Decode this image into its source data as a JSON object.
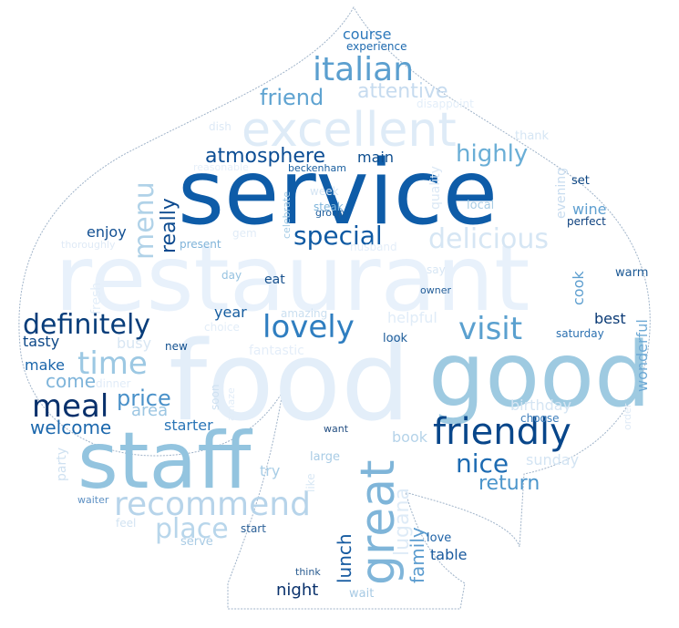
{
  "shape": "spade",
  "colors": {
    "background": "#ffffff",
    "outline": "#9fb3c9",
    "palette": [
      "#08306b",
      "#08519c",
      "#2171b5",
      "#4292c6",
      "#6baed6",
      "#9ecae1",
      "#c6dbef",
      "#deebf7"
    ]
  },
  "words": [
    {
      "text": "restaurant",
      "color": "#e8f1fb"
    },
    {
      "text": "food",
      "color": "#e3eef9"
    },
    {
      "text": "service",
      "color": "#0e5ca8"
    },
    {
      "text": "good",
      "color": "#9ecae1"
    },
    {
      "text": "staff",
      "color": "#93c4df"
    },
    {
      "text": "excellent",
      "color": "#deebf7"
    },
    {
      "text": "great",
      "color": "#7fb5d9"
    },
    {
      "text": "friendly",
      "color": "#08468a"
    },
    {
      "text": "recommend",
      "color": "#b7d4ea"
    },
    {
      "text": "italian",
      "color": "#5b9fcf"
    },
    {
      "text": "lovely",
      "color": "#2f7ec0"
    },
    {
      "text": "definitely",
      "color": "#083d7a"
    },
    {
      "text": "visit",
      "color": "#5aa0cf"
    },
    {
      "text": "meal",
      "color": "#08306b"
    },
    {
      "text": "time",
      "color": "#9cc8e3"
    },
    {
      "text": "place",
      "color": "#b8d6eb"
    },
    {
      "text": "delicious",
      "color": "#d6e6f4"
    },
    {
      "text": "menu",
      "color": "#b0d2e8"
    },
    {
      "text": "special",
      "color": "#0f5aa3"
    },
    {
      "text": "atmosphere",
      "color": "#0c4d94"
    },
    {
      "text": "highly",
      "color": "#6aaed6"
    },
    {
      "text": "nice",
      "color": "#1d6bb2"
    },
    {
      "text": "price",
      "color": "#4a91c9"
    },
    {
      "text": "friend",
      "color": "#5fa3d1"
    },
    {
      "text": "attentive",
      "color": "#c6dbef"
    },
    {
      "text": "really",
      "color": "#0c4a8f"
    },
    {
      "text": "lugana",
      "color": "#deebf7"
    },
    {
      "text": "return",
      "color": "#4b95cb"
    },
    {
      "text": "welcome",
      "color": "#1c68ad"
    },
    {
      "text": "come",
      "color": "#7eb4da"
    },
    {
      "text": "lunch",
      "color": "#155aa0"
    },
    {
      "text": "family",
      "color": "#5b9ccf"
    },
    {
      "text": "course",
      "color": "#2c78bb"
    },
    {
      "text": "experience",
      "color": "#1e6aaf"
    },
    {
      "text": "main",
      "color": "#0e4e8f"
    },
    {
      "text": "cook",
      "color": "#5d9ecf"
    },
    {
      "text": "wonderful",
      "color": "#6da9d5"
    },
    {
      "text": "birthday",
      "color": "#d5e5f3"
    },
    {
      "text": "area",
      "color": "#9cc6e2"
    },
    {
      "text": "starter",
      "color": "#2a75b7"
    },
    {
      "text": "enjoy",
      "color": "#124f92"
    },
    {
      "text": "year",
      "color": "#155c9f"
    },
    {
      "text": "make",
      "color": "#1a65aa"
    },
    {
      "text": "tasty",
      "color": "#0c4787"
    },
    {
      "text": "busy",
      "color": "#d8e6f3"
    },
    {
      "text": "helpful",
      "color": "#e0ecf8"
    },
    {
      "text": "fantastic",
      "color": "#e4eef9"
    },
    {
      "text": "wine",
      "color": "#5e9fd0"
    },
    {
      "text": "best",
      "color": "#0a3a75"
    },
    {
      "text": "sunday",
      "color": "#d3e4f3"
    },
    {
      "text": "book",
      "color": "#b5d3e9"
    },
    {
      "text": "table",
      "color": "#18599d"
    },
    {
      "text": "night",
      "color": "#08306b"
    },
    {
      "text": "try",
      "color": "#a8cde6"
    },
    {
      "text": "party",
      "color": "#cfe1f1"
    },
    {
      "text": "quality",
      "color": "#dbe8f5"
    },
    {
      "text": "evening",
      "color": "#c8dcef"
    },
    {
      "text": "thank",
      "color": "#d6e6f4"
    },
    {
      "text": "disappoint",
      "color": "#e3eef9"
    },
    {
      "text": "dish",
      "color": "#dde9f6"
    },
    {
      "text": "reasonable",
      "color": "#e6eff9"
    },
    {
      "text": "beckenham",
      "color": "#1a5f9f"
    },
    {
      "text": "celebrate",
      "color": "#a4cbe4"
    },
    {
      "text": "week",
      "color": "#d4e4f3"
    },
    {
      "text": "steak",
      "color": "#7eb4da"
    },
    {
      "text": "group",
      "color": "#1d5d9c"
    },
    {
      "text": "local",
      "color": "#a8cde5"
    },
    {
      "text": "set",
      "color": "#0c4582"
    },
    {
      "text": "perfect",
      "color": "#0b3f7d"
    },
    {
      "text": "thoroughly",
      "color": "#dfeaf6"
    },
    {
      "text": "present",
      "color": "#7fb3d9"
    },
    {
      "text": "day",
      "color": "#95c2e0"
    },
    {
      "text": "eat",
      "color": "#154f8c"
    },
    {
      "text": "owner",
      "color": "#225d98"
    },
    {
      "text": "warm",
      "color": "#1b5894"
    },
    {
      "text": "say",
      "color": "#d7e6f4"
    },
    {
      "text": "amazing",
      "color": "#cadff0"
    },
    {
      "text": "choice",
      "color": "#e2edf8"
    },
    {
      "text": "look",
      "color": "#1d5c99"
    },
    {
      "text": "saturday",
      "color": "#2b70b0"
    },
    {
      "text": "new",
      "color": "#12508f"
    },
    {
      "text": "dinner",
      "color": "#e1ecf8"
    },
    {
      "text": "soon",
      "color": "#cfe1f1"
    },
    {
      "text": "amaze",
      "color": "#e2edf8"
    },
    {
      "text": "choose",
      "color": "#3e7ebb"
    },
    {
      "text": "order",
      "color": "#dfeaf6"
    },
    {
      "text": "want",
      "color": "#244f82"
    },
    {
      "text": "large",
      "color": "#a9cce5"
    },
    {
      "text": "like",
      "color": "#d8e7f4"
    },
    {
      "text": "waiter",
      "color": "#5d90c3"
    },
    {
      "text": "feel",
      "color": "#d2e3f2"
    },
    {
      "text": "start",
      "color": "#2a5f96"
    },
    {
      "text": "serve",
      "color": "#a9cbe4"
    },
    {
      "text": "love",
      "color": "#1e62a6"
    },
    {
      "text": "think",
      "color": "#2a5c90"
    },
    {
      "text": "wait",
      "color": "#a7cae4"
    },
    {
      "text": "fresh",
      "color": "#e3eef9"
    },
    {
      "text": "gem",
      "color": "#e1ecf7"
    },
    {
      "text": "husband",
      "color": "#e4eef9"
    }
  ]
}
